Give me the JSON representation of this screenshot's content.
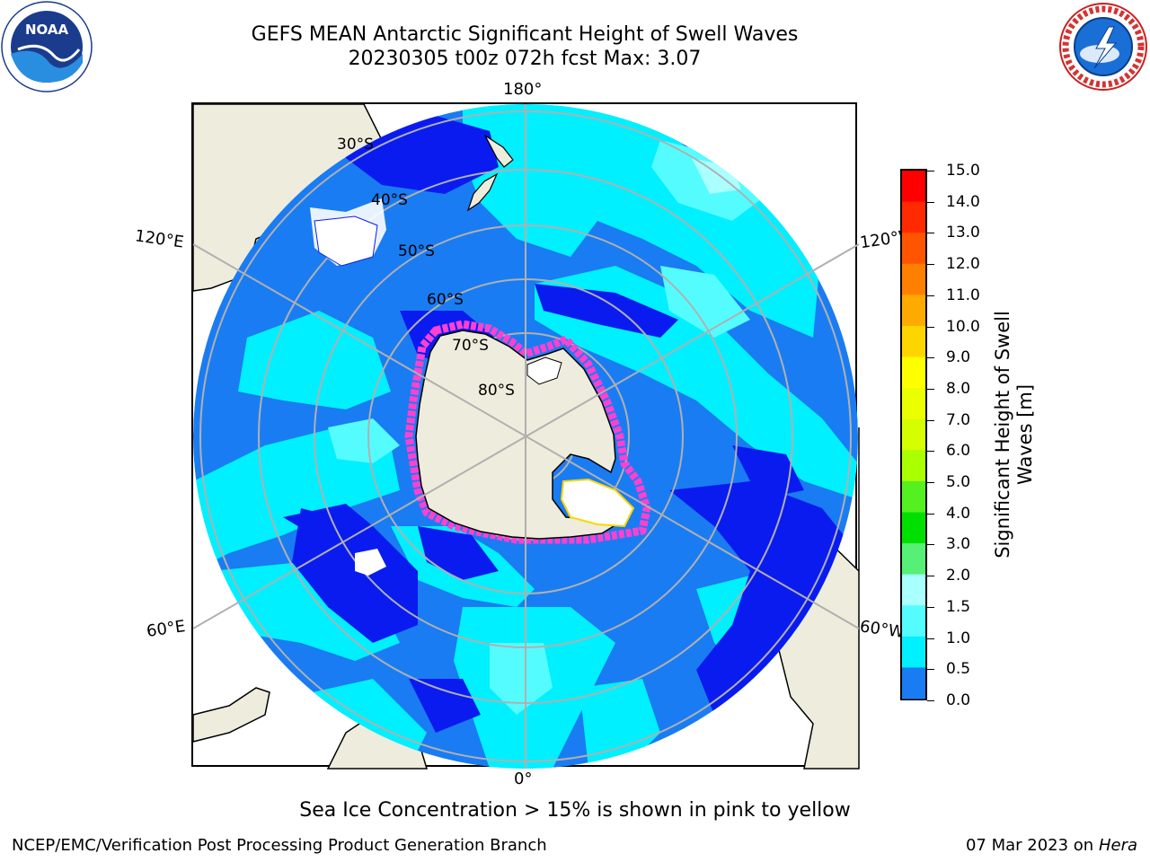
{
  "title": {
    "line1": "GEFS MEAN Antarctic Significant Height of Swell Waves",
    "line2": "20230305 t00z 072h fcst   Max: 3.07"
  },
  "map": {
    "projection": "south-polar-stereographic",
    "longitude_labels": {
      "top": "180°",
      "bottom": "0°",
      "upper_left": "120°E",
      "upper_right": "120°W",
      "lower_left": "60°E",
      "lower_right": "60°W"
    },
    "latitude_labels": [
      "30°S",
      "40°S",
      "50°S",
      "60°S",
      "70°S",
      "80°S"
    ],
    "colors": {
      "land": "#eeecdc",
      "ocean_low": "#0a1bf0",
      "ocean_mid": "#1a7cf2",
      "ocean_high": "#00f0ff",
      "ocean_higher": "#4df9ff",
      "sea_ice": "#ff40d0",
      "grid": "#b0b0b0"
    }
  },
  "colorbar": {
    "label_line1": "Significant Height of Swell",
    "label_line2": "Waves [m]",
    "ticks": [
      "15.0",
      "14.0",
      "13.0",
      "12.0",
      "11.0",
      "10.0",
      "9.0",
      "8.0",
      "7.0",
      "6.0",
      "5.0",
      "4.0",
      "3.0",
      "2.0",
      "1.5",
      "1.0",
      "0.5",
      "0.0"
    ],
    "colors": [
      "#ff0000",
      "#ff2a00",
      "#ff5500",
      "#ff8000",
      "#ffaa00",
      "#ffd500",
      "#ffff00",
      "#ebff00",
      "#d5ff00",
      "#aaff00",
      "#55f020",
      "#00e000",
      "#55f075",
      "#aaffff",
      "#55fcff",
      "#00f0ff",
      "#1a7cf2",
      "#0000ff"
    ]
  },
  "footnote": "Sea Ice Concentration > 15% is shown in pink to yellow",
  "credits": {
    "left": "NCEP/EMC/Verification Post Processing Product Generation Branch",
    "right_date": "07 Mar 2023 on",
    "right_host": "Hera"
  },
  "logos": {
    "left": "noaa-logo",
    "right": "nws-logo"
  }
}
